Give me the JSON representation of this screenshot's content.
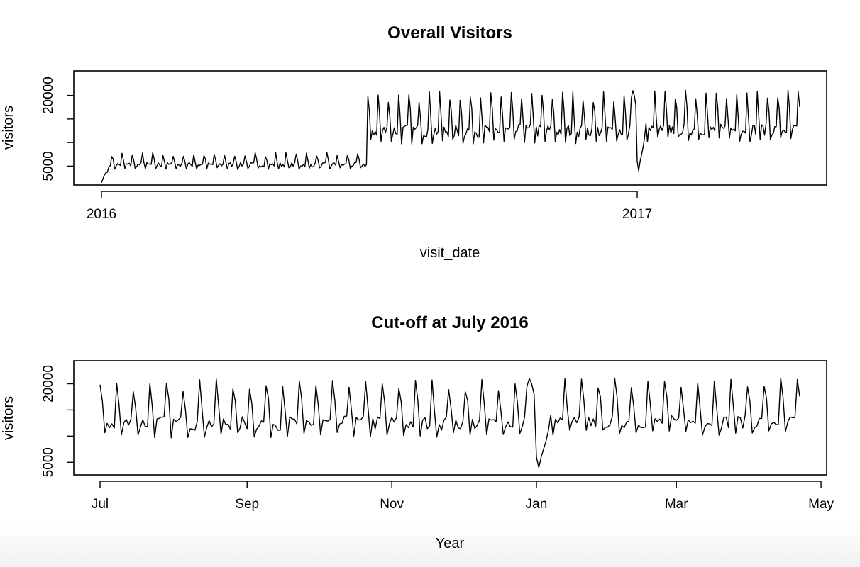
{
  "chart_data": [
    {
      "type": "line",
      "title": "Overall Visitors",
      "xlabel": "visit_date",
      "ylabel": "visitors",
      "x_range": [
        "2016-01-01",
        "2017-04-22"
      ],
      "ylim": [
        1000,
        25200
      ],
      "y_ticks": [
        {
          "value": 5000,
          "label": "5000"
        },
        {
          "value": 10000,
          "label": ""
        },
        {
          "value": 15000,
          "label": ""
        },
        {
          "value": 20000,
          "label": "20000"
        }
      ],
      "x_ticks": [
        {
          "value": "2016-01-01",
          "label": "2016"
        },
        {
          "value": "2017-01-01",
          "label": "2017"
        }
      ],
      "color": "#000000",
      "series_pattern": {
        "granularity": "daily",
        "note": "weekly seasonality; level ~4000-8000 until mid-2016, jump to ~9000-20000 from July 2016, dip at New Year 2017",
        "segments": [
          {
            "from": "2016-01-01",
            "to": "2016-01-07",
            "values": [
              1500,
              2300,
              3100,
              3600,
              3700,
              4800,
              5100
            ]
          },
          {
            "from": "2016-01-08",
            "to": "2016-07-01",
            "weekday_low": 4600,
            "weekday_high": 6000,
            "weekend_peak": 7800
          },
          {
            "from": "2016-07-01",
            "to": "2016-12-31",
            "weekday_low": 10500,
            "weekday_high": 14500,
            "weekend_peak": 20500
          },
          {
            "from": "2016-12-28",
            "to": "2017-01-07",
            "values": [
              19500,
              21000,
              20000,
              18000,
              6000,
              4000,
              6000,
              7500,
              9000,
              11000,
              14000
            ]
          },
          {
            "from": "2017-01-08",
            "to": "2017-04-22",
            "weekday_low": 11000,
            "weekday_high": 14500,
            "weekend_peak": 21000
          }
        ]
      }
    },
    {
      "type": "line",
      "title": "Cut-off at July 2016",
      "xlabel": "Year",
      "ylabel": "visitors",
      "x_range": [
        "2016-07-01",
        "2017-04-22"
      ],
      "ylim": [
        2600,
        24400
      ],
      "y_ticks": [
        {
          "value": 5000,
          "label": "5000"
        },
        {
          "value": 10000,
          "label": ""
        },
        {
          "value": 15000,
          "label": ""
        },
        {
          "value": 20000,
          "label": "20000"
        }
      ],
      "x_ticks": [
        {
          "value": "2016-07-01",
          "label": "Jul"
        },
        {
          "value": "2016-09-01",
          "label": "Sep"
        },
        {
          "value": "2016-11-01",
          "label": "Nov"
        },
        {
          "value": "2017-01-01",
          "label": "Jan"
        },
        {
          "value": "2017-03-01",
          "label": "Mar"
        },
        {
          "value": "2017-05-01",
          "label": "May"
        }
      ],
      "color": "#000000",
      "series_pattern": {
        "granularity": "daily",
        "note": "same data as the first panel, restricted to July 2016 onward",
        "source_panel": 0
      }
    }
  ]
}
